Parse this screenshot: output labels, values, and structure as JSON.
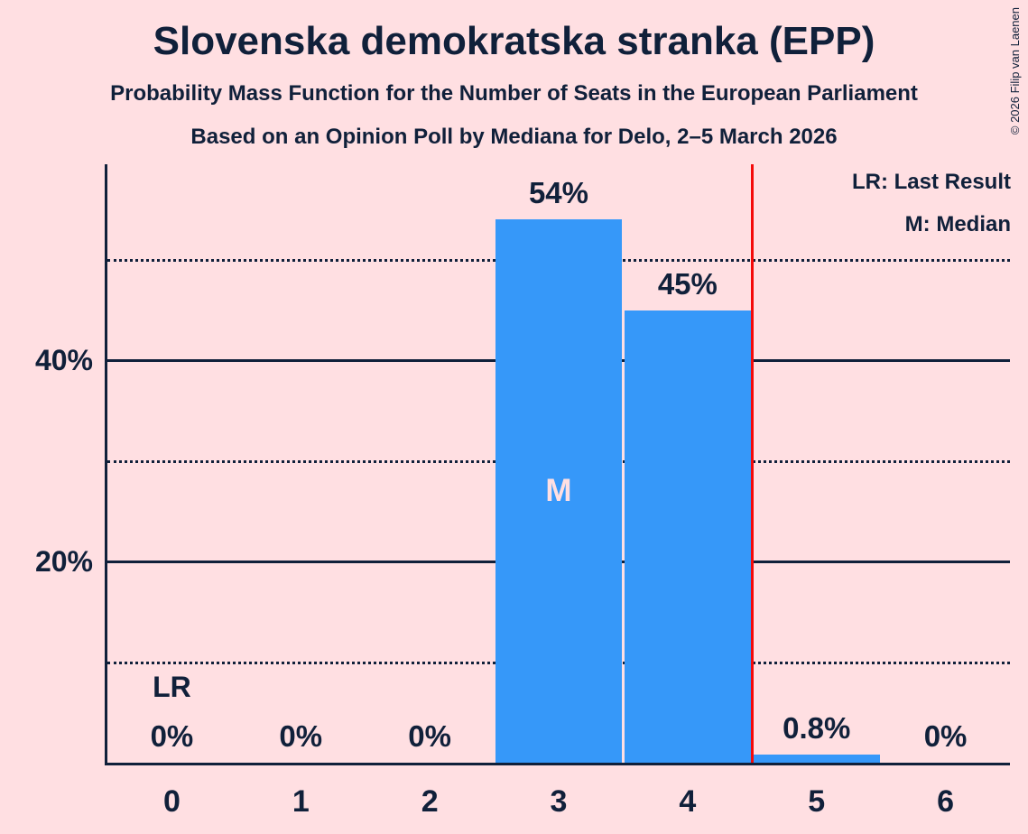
{
  "header": {
    "title": "Slovenska demokratska stranka (EPP)",
    "subtitle1": "Probability Mass Function for the Number of Seats in the European Parliament",
    "subtitle2": "Based on an Opinion Poll by Mediana for Delo, 2–5 March 2026"
  },
  "copyright": "© 2026 Filip van Laenen",
  "legend": {
    "last_result": "LR: Last Result",
    "median": "M: Median"
  },
  "colors": {
    "background": "#FFDFE2",
    "bar": "#3698F9",
    "text": "#10203A",
    "median_marker": "#FFDFE2",
    "last_result_line": "#F40A0A"
  },
  "chart_data": {
    "type": "bar",
    "title": "Slovenska demokratska stranka (EPP)",
    "xlabel": "",
    "ylabel": "",
    "categories": [
      "0",
      "1",
      "2",
      "3",
      "4",
      "5",
      "6"
    ],
    "values": [
      0,
      0,
      0,
      54,
      45,
      0.8,
      0
    ],
    "bar_labels": [
      "0%",
      "0%",
      "0%",
      "54%",
      "45%",
      "0.8%",
      "0%"
    ],
    "ylim": [
      0,
      59.5
    ],
    "grid": true,
    "legend_position": "top-right",
    "y_ticks": [
      {
        "value": 20,
        "label": "20%"
      },
      {
        "value": 40,
        "label": "40%"
      }
    ],
    "gridlines": [
      {
        "value": 10,
        "style": "dotted"
      },
      {
        "value": 20,
        "style": "solid"
      },
      {
        "value": 30,
        "style": "dotted"
      },
      {
        "value": 40,
        "style": "solid"
      },
      {
        "value": 50,
        "style": "dotted"
      }
    ],
    "median": {
      "index": 3,
      "marker": "M"
    },
    "last_result": {
      "label": "LR",
      "label_index": 0,
      "line_position": 4.5
    }
  }
}
